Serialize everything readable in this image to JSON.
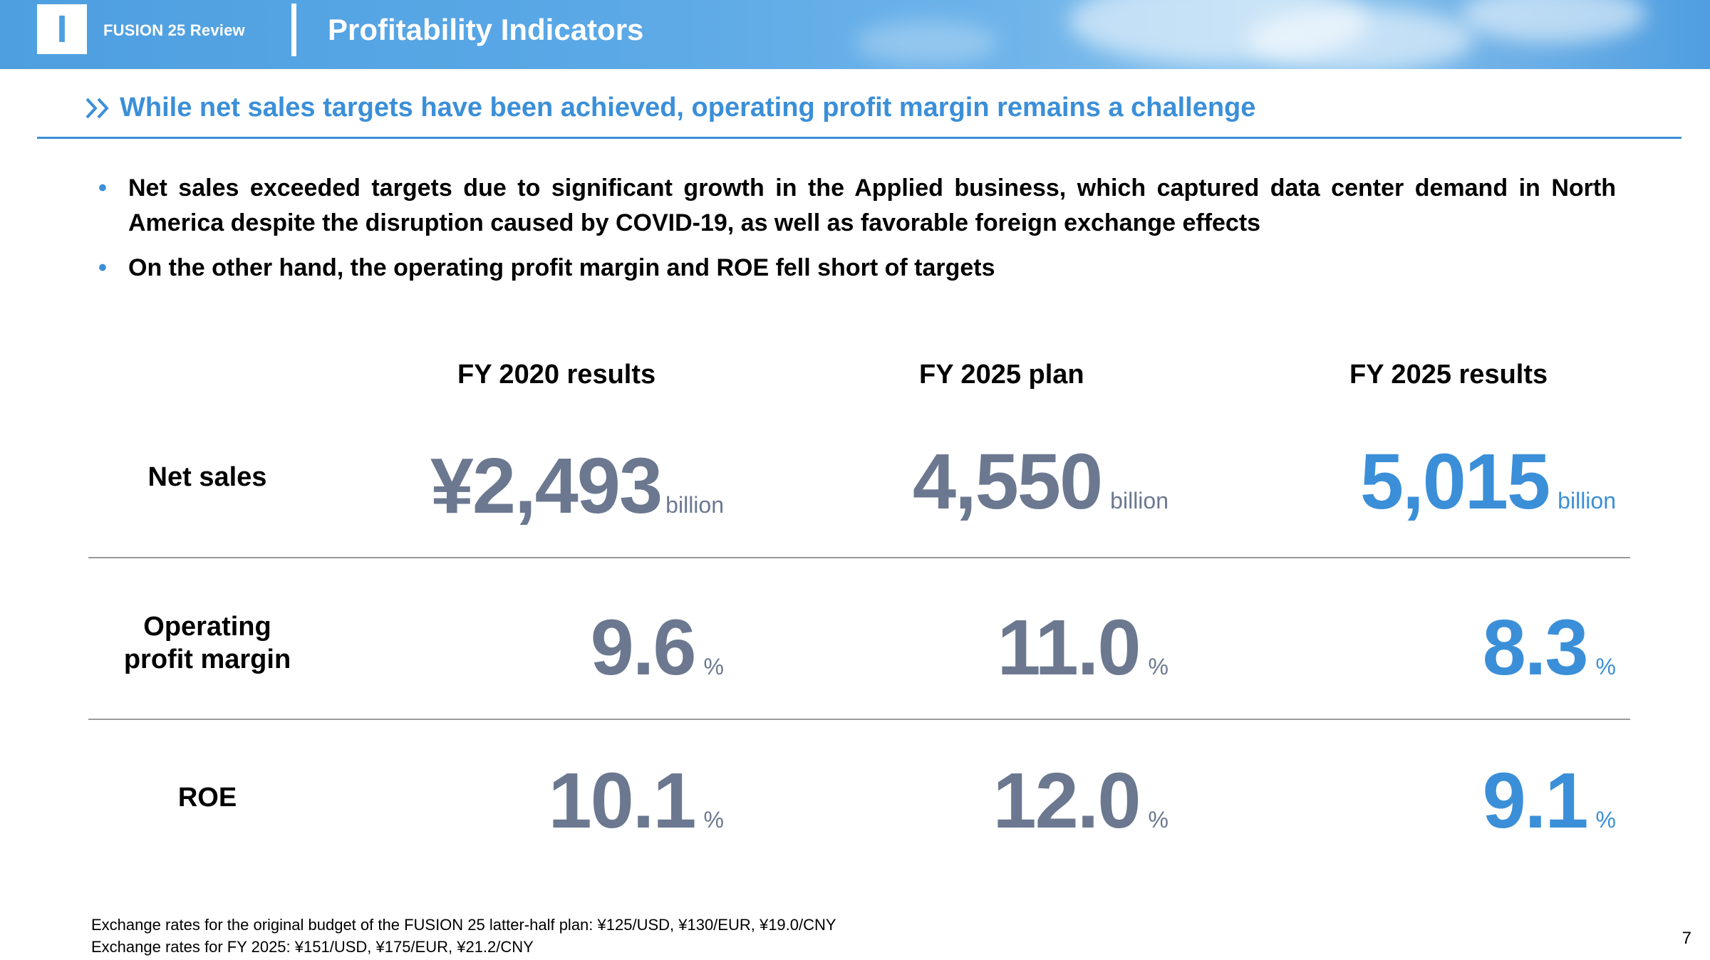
{
  "header": {
    "section_number": "I",
    "brand": "FUSION 25 Review",
    "title": "Profitability Indicators"
  },
  "subtitle": "While net sales targets have been achieved, operating profit margin remains a challenge",
  "bullets": [
    "Net sales exceeded targets due to significant growth in the Applied business, which captured data center demand in North America despite the disruption caused by COVID-19, as well as favorable foreign exchange effects",
    "On the other hand, the operating profit margin and ROE fell short of targets"
  ],
  "table": {
    "columns": [
      "FY 2020 results",
      "FY 2025 plan",
      "FY 2025 results"
    ],
    "rows": [
      {
        "label": "Net sales",
        "values": [
          "¥2,493",
          "4,550",
          "5,015"
        ],
        "unit": "billion"
      },
      {
        "label": "Operating\nprofit margin",
        "values": [
          "9.6",
          "11.0",
          "8.3"
        ],
        "unit": "%"
      },
      {
        "label": "ROE",
        "values": [
          "10.1",
          "12.0",
          "9.1"
        ],
        "unit": "%"
      }
    ]
  },
  "footnotes": [
    "Exchange rates for the original budget of the FUSION 25 latter-half plan: ¥125/USD, ¥130/EUR, ¥19.0/CNY",
    "Exchange rates for FY 2025: ¥151/USD, ¥175/EUR, ¥21.2/CNY"
  ],
  "page_number": "7",
  "colors": {
    "accent_blue": "#3b8fd8",
    "value_gray": "#6b7890",
    "banner_blue": "#4e9fe0"
  },
  "icons": {
    "subtitle_marker": "double-chevron-right-icon"
  }
}
